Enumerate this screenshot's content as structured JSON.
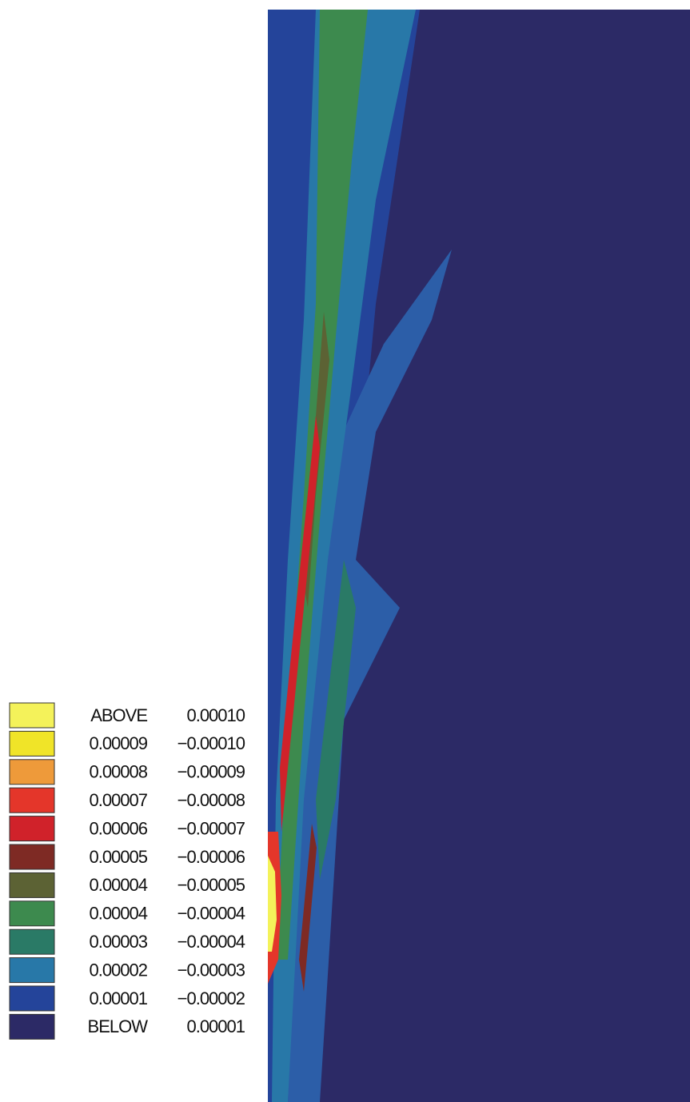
{
  "legend": {
    "items": [
      {
        "low": "ABOVE",
        "high": "0.00010",
        "color": "#f4f25a"
      },
      {
        "low": "0.00009",
        "high": "−0.00010",
        "color": "#f0e428"
      },
      {
        "low": "0.00008",
        "high": "−0.00009",
        "color": "#ee9a3a"
      },
      {
        "low": "0.00007",
        "high": "−0.00008",
        "color": "#e4362a"
      },
      {
        "low": "0.00006",
        "high": "−0.00007",
        "color": "#d0222a"
      },
      {
        "low": "0.00005",
        "high": "−0.00006",
        "color": "#7e2a24"
      },
      {
        "low": "0.00004",
        "high": "−0.00005",
        "color": "#5c6234"
      },
      {
        "low": "0.00004",
        "high": "−0.00004",
        "color": "#3d8a4e"
      },
      {
        "low": "0.00003",
        "high": "−0.00004",
        "color": "#2a7a66"
      },
      {
        "low": "0.00002",
        "high": "−0.00003",
        "color": "#2878a8"
      },
      {
        "low": "0.00001",
        "high": "−0.00002",
        "color": "#24449a"
      },
      {
        "low": "BELOW",
        "high": "0.00001",
        "color": "#2c2a66"
      }
    ]
  }
}
